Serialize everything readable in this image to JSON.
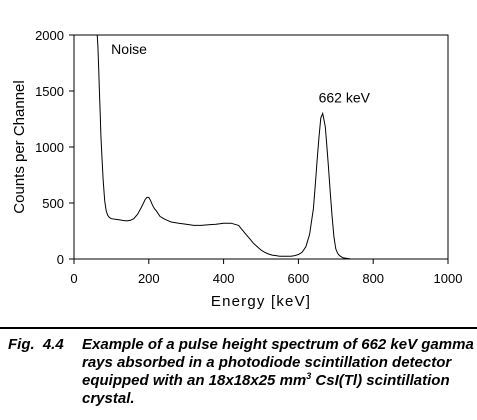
{
  "chart_data": {
    "type": "line",
    "title": "",
    "xlabel": "Energy [keV]",
    "ylabel": "Counts per Channel",
    "xlim": [
      0,
      1000
    ],
    "ylim": [
      0,
      2000
    ],
    "x_ticks": [
      0,
      200,
      400,
      600,
      800,
      1000
    ],
    "y_ticks": [
      0,
      500,
      1000,
      1500,
      2000
    ],
    "grid": false,
    "legend": "none",
    "series": [
      {
        "x": [
          62,
          64,
          66,
          68,
          70,
          72,
          75,
          78,
          82,
          86,
          90,
          95,
          100,
          110,
          120,
          130,
          140,
          150,
          160,
          170,
          180,
          190,
          195,
          200,
          205,
          210,
          215,
          220,
          230,
          240,
          250,
          260,
          270,
          280,
          290,
          300,
          320,
          340,
          360,
          380,
          400,
          410,
          420,
          430,
          440,
          450,
          460,
          470,
          480,
          490,
          500,
          510,
          520,
          530,
          540,
          550,
          560,
          570,
          580,
          590,
          600,
          610,
          620,
          630,
          640,
          645,
          650,
          655,
          660,
          665,
          668,
          672,
          675,
          680,
          685,
          690,
          695,
          700,
          705,
          710,
          715,
          720,
          730,
          740,
          750,
          760
        ],
        "y": [
          2000,
          1900,
          1700,
          1500,
          1300,
          1100,
          900,
          700,
          520,
          430,
          390,
          370,
          360,
          355,
          350,
          345,
          340,
          345,
          360,
          400,
          460,
          530,
          550,
          550,
          520,
          480,
          450,
          430,
          380,
          360,
          345,
          330,
          325,
          320,
          315,
          310,
          300,
          300,
          305,
          310,
          320,
          320,
          320,
          310,
          300,
          260,
          220,
          180,
          140,
          110,
          80,
          60,
          45,
          35,
          30,
          25,
          25,
          25,
          25,
          30,
          40,
          60,
          110,
          220,
          450,
          650,
          880,
          1090,
          1260,
          1300,
          1250,
          1180,
          1050,
          840,
          600,
          380,
          200,
          90,
          50,
          30,
          20,
          10,
          5,
          0,
          0,
          0
        ]
      }
    ],
    "annotations": [
      {
        "text": "Noise",
        "x": 70,
        "y": 1900
      },
      {
        "text": "662 keV",
        "x": 662,
        "y": 1300
      }
    ]
  },
  "caption": {
    "number": "Fig. 4.4",
    "text_before_superscript": "Example of a pulse height spectrum of 662 keV gamma rays absorbed in a photodiode scintillation detector equipped with an 18x18x25 mm",
    "superscript": "3",
    "text_after_superscript": " CsI(Tl) scintillation crystal."
  }
}
